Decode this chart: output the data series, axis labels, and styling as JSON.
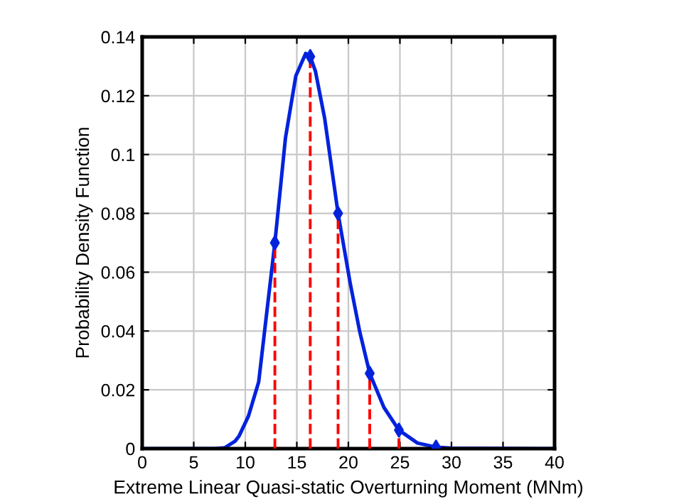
{
  "chart_data": {
    "type": "line",
    "xlabel": "Extreme Linear Quasi-static Overturning Moment (MNm)",
    "ylabel": "Probability Density Function",
    "xlim": [
      0,
      40
    ],
    "ylim": [
      0,
      0.14
    ],
    "xticks": [
      0,
      5,
      10,
      15,
      20,
      25,
      30,
      35,
      40
    ],
    "yticks": [
      0,
      0.02,
      0.04,
      0.06,
      0.08,
      0.1,
      0.12,
      0.14
    ],
    "grid": true,
    "series": [
      {
        "color": "#0022dd",
        "marker": "none",
        "line_style": "solid",
        "x": [
          0,
          7,
          8,
          9,
          9.4,
          10.3,
          11.3,
          12.87,
          13.9,
          14.9,
          15.86,
          16.3,
          16.8,
          17.7,
          19.0,
          20.2,
          21.1,
          22.07,
          23.45,
          24.9,
          26.7,
          28.5,
          30,
          40
        ],
        "values": [
          0,
          0,
          0.0003,
          0.0025,
          0.0043,
          0.011,
          0.0227,
          0.07,
          0.1057,
          0.1267,
          0.1344,
          0.1333,
          0.1284,
          0.1123,
          0.08,
          0.0558,
          0.0398,
          0.0256,
          0.014,
          0.0063,
          0.0019,
          0.0005,
          0.0002,
          0
        ]
      },
      {
        "type": "lollipop",
        "color": "#ff0000",
        "line_style": "dashed",
        "marker": "diamond",
        "colors": [
          "#0022dd",
          "#0022dd",
          "#0022dd",
          "#0022dd",
          "#0022dd",
          "#0022dd"
        ],
        "x": [
          12.87,
          16.3,
          19.0,
          22.07,
          24.9,
          28.5
        ],
        "values": [
          0.07,
          0.1333,
          0.08,
          0.0256,
          0.0063,
          0.0005
        ]
      }
    ]
  }
}
